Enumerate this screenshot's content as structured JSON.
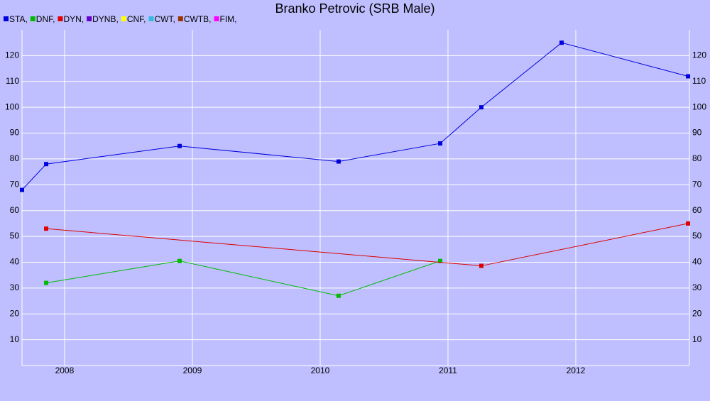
{
  "chart_data": {
    "type": "line",
    "title": "Branko Petrovic (SRB Male)",
    "xlim": [
      2007.667,
      2012.889
    ],
    "xticks": [
      2008,
      2009,
      2010,
      2011,
      2012
    ],
    "ylim": [
      0,
      130
    ],
    "yticks": [
      10,
      20,
      30,
      40,
      50,
      60,
      70,
      80,
      90,
      100,
      110,
      120
    ],
    "grid": true,
    "legend": "top-left",
    "series": [
      {
        "name": "STA,",
        "color": "#0000dd",
        "x": [
          2007.667,
          2007.856,
          2008.9,
          2010.144,
          2010.939,
          2011.261,
          2011.889,
          2012.878
        ],
        "values": [
          68,
          78,
          85,
          79,
          86,
          100,
          125,
          112
        ]
      },
      {
        "name": "DNF,",
        "color": "#00bb00",
        "x": [
          2007.856,
          2008.9,
          2010.144,
          2010.939
        ],
        "values": [
          32,
          40.5,
          27,
          40.5
        ]
      },
      {
        "name": "DYN,",
        "color": "#dd0000",
        "x": [
          2007.856,
          2011.261,
          2012.878
        ],
        "values": [
          53,
          38.6,
          55
        ]
      },
      {
        "name": "DYNB,",
        "color": "#6600cc",
        "x": [],
        "values": []
      },
      {
        "name": "CNF,",
        "color": "#ffff00",
        "x": [],
        "values": []
      },
      {
        "name": "CWT,",
        "color": "#33bbdd",
        "x": [],
        "values": []
      },
      {
        "name": "CWTB,",
        "color": "#993300",
        "x": [],
        "values": []
      },
      {
        "name": "FIM,",
        "color": "#ff00ff",
        "x": [],
        "values": []
      }
    ]
  }
}
